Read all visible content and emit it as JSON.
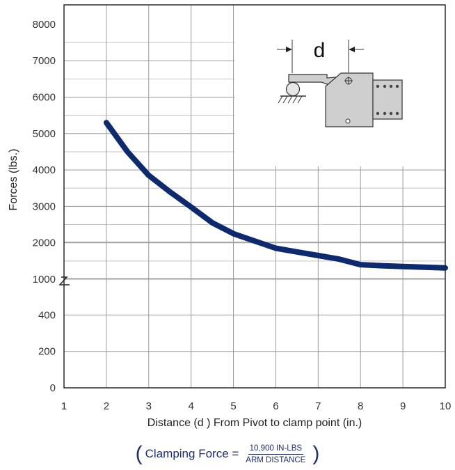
{
  "chart_data": {
    "type": "line",
    "title": "",
    "xlabel": "Distance (d ) From Pivot to clamp point (in.)",
    "ylabel": "Forces (lbs.)",
    "x_ticks": [
      "1",
      "2",
      "3",
      "4",
      "5",
      "6",
      "7",
      "8",
      "9",
      "10"
    ],
    "y_ticks": [
      "0",
      "200",
      "400",
      "1000",
      "2000",
      "3000",
      "4000",
      "5000",
      "6000",
      "7000",
      "8000"
    ],
    "xlim": [
      1,
      10
    ],
    "y_axis_broken": true,
    "grid": true,
    "series": [
      {
        "color": "#0d2a6e",
        "x": [
          2,
          2.5,
          3,
          3.5,
          4,
          4.5,
          5,
          5.5,
          6,
          6.5,
          7,
          7.5,
          8,
          8.5,
          9,
          9.5,
          10
        ],
        "y": [
          5300,
          4500,
          3850,
          3400,
          2980,
          2550,
          2250,
          2050,
          1850,
          1750,
          1650,
          1550,
          1400,
          1370,
          1350,
          1330,
          1310
        ]
      }
    ],
    "diagram": {
      "dimension_label": "d"
    },
    "formula": {
      "label": "Clamping Force =",
      "numerator": "10,900 IN-LBS",
      "denominator": "ARM DISTANCE",
      "open_paren": "(",
      "close_paren": ")"
    }
  }
}
